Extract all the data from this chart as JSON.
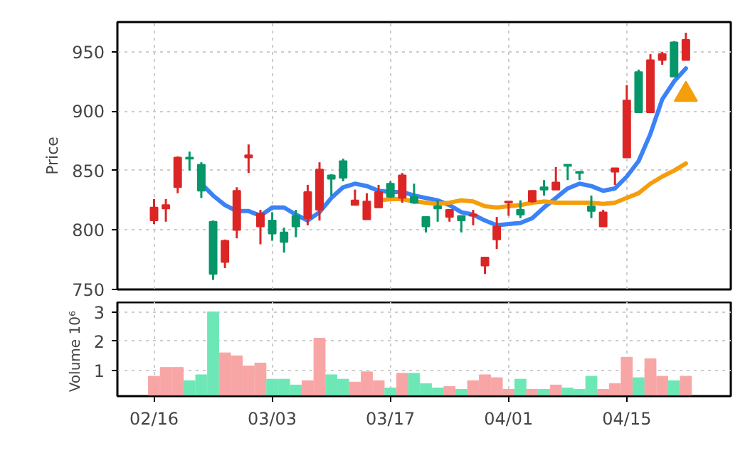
{
  "chart_data": [
    {
      "type": "candlestick",
      "ylabel": "Price",
      "grid": true,
      "tick_labels": "y",
      "categories": [
        "02/16",
        null,
        null,
        null,
        null,
        null,
        null,
        null,
        null,
        null,
        "03/03",
        null,
        null,
        null,
        null,
        null,
        null,
        null,
        null,
        null,
        "03/17",
        null,
        null,
        null,
        null,
        null,
        null,
        null,
        null,
        null,
        "04/01",
        null,
        null,
        null,
        null,
        null,
        null,
        null,
        null,
        null,
        "04/15",
        null,
        null,
        null,
        null,
        null
      ],
      "ohlc": [
        [
          808,
          826,
          805,
          819
        ],
        [
          818,
          826,
          807,
          821
        ],
        [
          836,
          862,
          831,
          861
        ],
        [
          861,
          866,
          850,
          860
        ],
        [
          855,
          857,
          827,
          833
        ],
        [
          807,
          808,
          758,
          763
        ],
        [
          773,
          792,
          768,
          791
        ],
        [
          800,
          836,
          793,
          833
        ],
        [
          861,
          872,
          848,
          863
        ],
        [
          803,
          817,
          788,
          814
        ],
        [
          808,
          815,
          791,
          797
        ],
        [
          798,
          802,
          781,
          790
        ],
        [
          812,
          817,
          794,
          803
        ],
        [
          810,
          838,
          804,
          832
        ],
        [
          817,
          857,
          808,
          851
        ],
        [
          846,
          847,
          829,
          843
        ],
        [
          858,
          860,
          841,
          844
        ],
        [
          821,
          834,
          821,
          825
        ],
        [
          809,
          831,
          809,
          824
        ],
        [
          819,
          838,
          819,
          832
        ],
        [
          839,
          841,
          827,
          828
        ],
        [
          827,
          848,
          823,
          846
        ],
        [
          828,
          839,
          822,
          823
        ],
        [
          811,
          811,
          798,
          803
        ],
        [
          820,
          825,
          807,
          818
        ],
        [
          811,
          817,
          807,
          817
        ],
        [
          812,
          812,
          798,
          808
        ],
        [
          812,
          817,
          804,
          813
        ],
        [
          770,
          777,
          763,
          777
        ],
        [
          792,
          811,
          784,
          803
        ],
        [
          823,
          824,
          812,
          824
        ],
        [
          817,
          825,
          810,
          813
        ],
        [
          824,
          833,
          823,
          833
        ],
        [
          836,
          842,
          829,
          834
        ],
        [
          834,
          853,
          834,
          840
        ],
        [
          855,
          855,
          842,
          854
        ],
        [
          849,
          849,
          842,
          848
        ],
        [
          820,
          829,
          810,
          816
        ],
        [
          803,
          817,
          803,
          815
        ],
        [
          849,
          852,
          838,
          852
        ],
        [
          861,
          922,
          861,
          909
        ],
        [
          933,
          935,
          899,
          899
        ],
        [
          899,
          948,
          899,
          943
        ],
        [
          943,
          950,
          939,
          948
        ],
        [
          958,
          959,
          929,
          929
        ],
        [
          943,
          966,
          943,
          960
        ]
      ],
      "colors": [
        "#dc2626",
        "#dc2626",
        "#dc2626",
        "#059669",
        "#059669",
        "#059669",
        "#dc2626",
        "#dc2626",
        "#dc2626",
        "#dc2626",
        "#059669",
        "#059669",
        "#059669",
        "#dc2626",
        "#dc2626",
        "#059669",
        "#059669",
        "#dc2626",
        "#dc2626",
        "#dc2626",
        "#059669",
        "#dc2626",
        "#059669",
        "#059669",
        "#059669",
        "#dc2626",
        "#059669",
        "#dc2626",
        "#dc2626",
        "#dc2626",
        "#dc2626",
        "#059669",
        "#dc2626",
        "#059669",
        "#dc2626",
        "#059669",
        "#059669",
        "#059669",
        "#dc2626",
        "#dc2626",
        "#dc2626",
        "#059669",
        "#dc2626",
        "#dc2626",
        "#059669",
        "#dc2626"
      ],
      "series": [
        {
          "type": "line",
          "color": "#3b82f6",
          "values": [
            null,
            null,
            null,
            null,
            839,
            829,
            821,
            816,
            816,
            812,
            819,
            819,
            813,
            808,
            815,
            827,
            836,
            839,
            837,
            833,
            832,
            832,
            829,
            827,
            825,
            821,
            815,
            813,
            808,
            804,
            805,
            806,
            810,
            819,
            827,
            835,
            839,
            837,
            833,
            835,
            845,
            858,
            881,
            910,
            925,
            936
          ]
        },
        {
          "type": "line",
          "color": "#f59e0b",
          "values": [
            null,
            null,
            null,
            null,
            null,
            null,
            null,
            null,
            null,
            null,
            null,
            null,
            null,
            null,
            null,
            null,
            null,
            null,
            null,
            825,
            826,
            826,
            824,
            823,
            822,
            823,
            825,
            824,
            820,
            819,
            820,
            821,
            823,
            824,
            823,
            823,
            823,
            823,
            822,
            823,
            827,
            831,
            839,
            845,
            850,
            856
          ]
        },
        {
          "type": "scatter",
          "marker": "triangle",
          "color": "#f59e0b",
          "values": [
            null,
            null,
            null,
            null,
            null,
            null,
            null,
            null,
            null,
            null,
            null,
            null,
            null,
            null,
            null,
            null,
            null,
            null,
            null,
            null,
            null,
            null,
            null,
            null,
            null,
            null,
            null,
            null,
            null,
            null,
            null,
            null,
            null,
            null,
            null,
            null,
            null,
            null,
            null,
            null,
            null,
            null,
            null,
            null,
            null,
            914
          ]
        }
      ],
      "ylim": [
        750,
        975
      ],
      "yticks": [
        750,
        800,
        850,
        900,
        950
      ]
    },
    {
      "type": "bar",
      "ylabel": "Volume  10⁶",
      "grid": true,
      "categories": [
        "02/16",
        null,
        null,
        null,
        null,
        null,
        null,
        null,
        null,
        null,
        "03/03",
        null,
        null,
        null,
        null,
        null,
        null,
        null,
        null,
        null,
        "03/17",
        null,
        null,
        null,
        null,
        null,
        null,
        null,
        null,
        null,
        "04/01",
        null,
        null,
        null,
        null,
        null,
        null,
        null,
        null,
        null,
        "04/15",
        null,
        null,
        null,
        null,
        null
      ],
      "values": [
        0.8,
        1.1,
        1.1,
        0.65,
        0.85,
        3.0,
        1.6,
        1.5,
        1.15,
        1.25,
        0.7,
        0.7,
        0.5,
        0.65,
        2.1,
        0.85,
        0.7,
        0.6,
        0.95,
        0.65,
        0.4,
        0.9,
        0.9,
        0.55,
        0.4,
        0.45,
        0.35,
        0.65,
        0.85,
        0.75,
        0.35,
        0.7,
        0.35,
        0.35,
        0.5,
        0.4,
        0.35,
        0.8,
        0.35,
        0.55,
        1.45,
        0.75,
        1.4,
        0.8,
        0.65,
        0.8
      ],
      "colors": [
        "#f8a5a5",
        "#f8a5a5",
        "#f8a5a5",
        "#6ee7b7",
        "#6ee7b7",
        "#6ee7b7",
        "#f8a5a5",
        "#f8a5a5",
        "#f8a5a5",
        "#f8a5a5",
        "#6ee7b7",
        "#6ee7b7",
        "#6ee7b7",
        "#f8a5a5",
        "#f8a5a5",
        "#6ee7b7",
        "#6ee7b7",
        "#f8a5a5",
        "#f8a5a5",
        "#f8a5a5",
        "#6ee7b7",
        "#f8a5a5",
        "#6ee7b7",
        "#6ee7b7",
        "#6ee7b7",
        "#f8a5a5",
        "#6ee7b7",
        "#f8a5a5",
        "#f8a5a5",
        "#f8a5a5",
        "#f8a5a5",
        "#6ee7b7",
        "#f8a5a5",
        "#6ee7b7",
        "#f8a5a5",
        "#6ee7b7",
        "#6ee7b7",
        "#6ee7b7",
        "#f8a5a5",
        "#f8a5a5",
        "#f8a5a5",
        "#6ee7b7",
        "#f8a5a5",
        "#f8a5a5",
        "#6ee7b7",
        "#f8a5a5"
      ],
      "ylim": [
        0.12,
        3.33
      ],
      "yticks": [
        1,
        2,
        3
      ]
    }
  ]
}
